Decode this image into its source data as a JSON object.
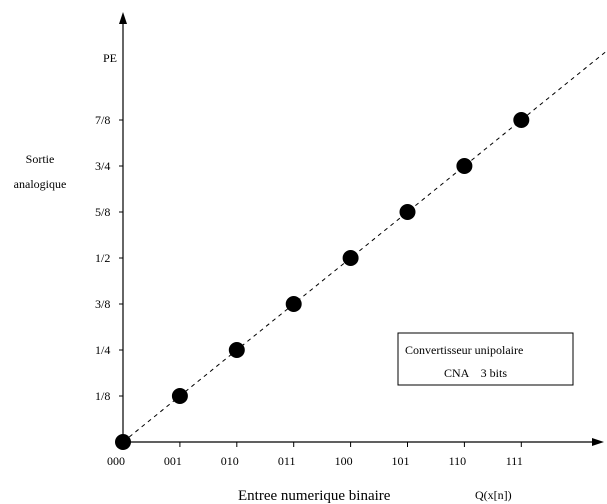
{
  "chart_data": {
    "type": "scatter",
    "title": "",
    "xlabel": "Entree numerique binaire",
    "xlabel_secondary": "Q(x[n])",
    "ylabel": [
      "Sortie",
      "analogique"
    ],
    "ylabel_top": "PE",
    "x_categories": [
      "000",
      "001",
      "010",
      "011",
      "100",
      "101",
      "110",
      "111"
    ],
    "y_ticks": [
      "1/8",
      "1/4",
      "3/8",
      "1/2",
      "5/8",
      "3/4",
      "7/8"
    ],
    "series": [
      {
        "x": [
          "000",
          "001",
          "010",
          "011",
          "100",
          "101",
          "110",
          "111"
        ],
        "values": [
          0,
          0.125,
          0.25,
          0.375,
          0.5,
          0.625,
          0.75,
          0.875
        ]
      }
    ],
    "trend_line": {
      "style": "dashed",
      "from": [
        0,
        0
      ],
      "to": [
        9,
        1.125
      ]
    },
    "ylim": [
      0,
      1.125
    ],
    "legend": {
      "lines": [
        "Convertisseur unipolaire",
        "CNA    3 bits"
      ],
      "placement": "right"
    },
    "grid": false
  }
}
